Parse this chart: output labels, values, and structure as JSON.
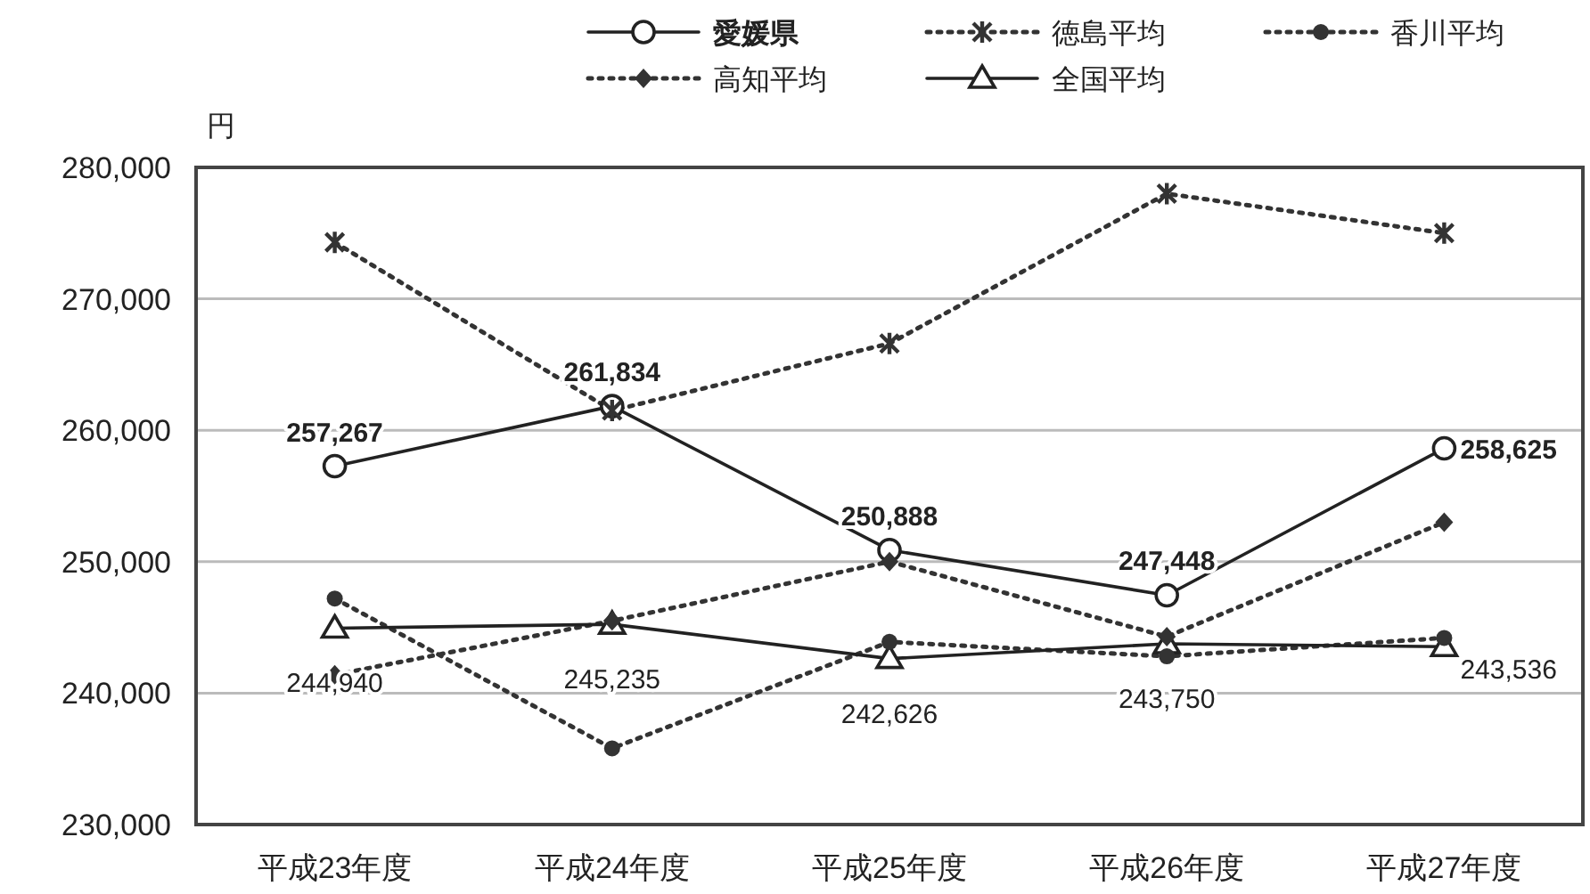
{
  "chart_data": {
    "type": "line",
    "ylabel": "円",
    "categories": [
      "平成23年度",
      "平成24年度",
      "平成25年度",
      "平成26年度",
      "平成27年度"
    ],
    "ylim": [
      230000,
      280000
    ],
    "yticks": [
      {
        "value": 230000,
        "label": "230,000"
      },
      {
        "value": 240000,
        "label": "240,000"
      },
      {
        "value": 250000,
        "label": "250,000"
      },
      {
        "value": 260000,
        "label": "260,000"
      },
      {
        "value": 270000,
        "label": "270,000"
      },
      {
        "value": 280000,
        "label": "280,000"
      }
    ],
    "grid": "y",
    "legend": "top",
    "series": [
      {
        "name": "愛媛県",
        "color": "#222222",
        "marker": "circle",
        "line_style": "solid",
        "values": [
          257267,
          261834,
          250888,
          247448,
          258625
        ],
        "value_labels": [
          "257,267",
          "261,834",
          "250,888",
          "247,448",
          "258,625"
        ]
      },
      {
        "name": "徳島平均",
        "color": "#333333",
        "marker": "cross",
        "line_style": "dotted",
        "values": [
          274300,
          261500,
          266600,
          278000,
          275000
        ]
      },
      {
        "name": "香川平均",
        "color": "#333333",
        "marker": "circle_filled",
        "line_style": "dotted",
        "values": [
          247200,
          235800,
          243900,
          242800,
          244200
        ]
      },
      {
        "name": "高知平均",
        "color": "#333333",
        "marker": "diamond",
        "line_style": "dotted",
        "values": [
          241400,
          245500,
          250000,
          244300,
          253000
        ]
      },
      {
        "name": "全国平均",
        "color": "#222222",
        "marker": "triangle",
        "line_style": "solid",
        "values": [
          244940,
          245235,
          242626,
          243750,
          243536
        ],
        "value_labels": [
          "244,940",
          "245,235",
          "242,626",
          "243,750",
          "243,536"
        ]
      }
    ]
  }
}
